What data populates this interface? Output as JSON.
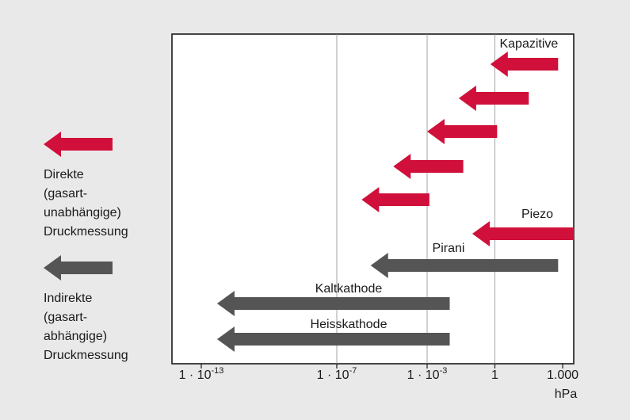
{
  "chart_data": {
    "type": "range-arrows",
    "x_axis": {
      "scale": "log",
      "unit_label": "hPa",
      "range_exponent": [
        -13,
        3.3
      ],
      "ticks": [
        {
          "value_exp": -13,
          "base": "1 · 10",
          "sup": "-13"
        },
        {
          "value_exp": -7,
          "base": "1 · 10",
          "sup": "-7"
        },
        {
          "value_exp": -3,
          "base": "1 · 10",
          "sup": "-3"
        },
        {
          "value_exp": 0,
          "base": "1",
          "sup": ""
        },
        {
          "value_exp": 3,
          "base": "1.000",
          "sup": ""
        }
      ],
      "gridlines_exp": [
        -7,
        -3,
        0
      ]
    },
    "series": [
      {
        "name": "Kapazitive",
        "group": "direct",
        "min_exp": -0.2,
        "max_exp": 2.8
      },
      {
        "name": "",
        "group": "direct",
        "min_exp": -1.6,
        "max_exp": 1.5
      },
      {
        "name": "",
        "group": "direct",
        "min_exp": -3.0,
        "max_exp": 0.1
      },
      {
        "name": "",
        "group": "direct",
        "min_exp": -4.5,
        "max_exp": -1.4
      },
      {
        "name": "",
        "group": "direct",
        "min_exp": -5.9,
        "max_exp": -2.9
      },
      {
        "name": "Piezo",
        "group": "direct",
        "min_exp": -1.0,
        "max_exp": 3.5
      },
      {
        "name": "Pirani",
        "group": "indirect",
        "min_exp": -5.5,
        "max_exp": 2.8
      },
      {
        "name": "Kaltkathode",
        "group": "indirect",
        "min_exp": -12.3,
        "max_exp": -2.0
      },
      {
        "name": "Heisskathode",
        "group": "indirect",
        "min_exp": -12.3,
        "max_exp": -2.0
      }
    ]
  },
  "legend": {
    "direct": {
      "lines": [
        "Direkte",
        "(gasart-",
        "unabhängige)",
        "Druckmessung"
      ]
    },
    "indirect": {
      "lines": [
        "Indirekte",
        "(gasart-",
        "abhängige)",
        "Druckmessung"
      ]
    }
  },
  "colors": {
    "direct": "#d0103a",
    "indirect": "#555555",
    "plot_bg": "#ffffff",
    "page_bg": "#e9e9ea"
  }
}
